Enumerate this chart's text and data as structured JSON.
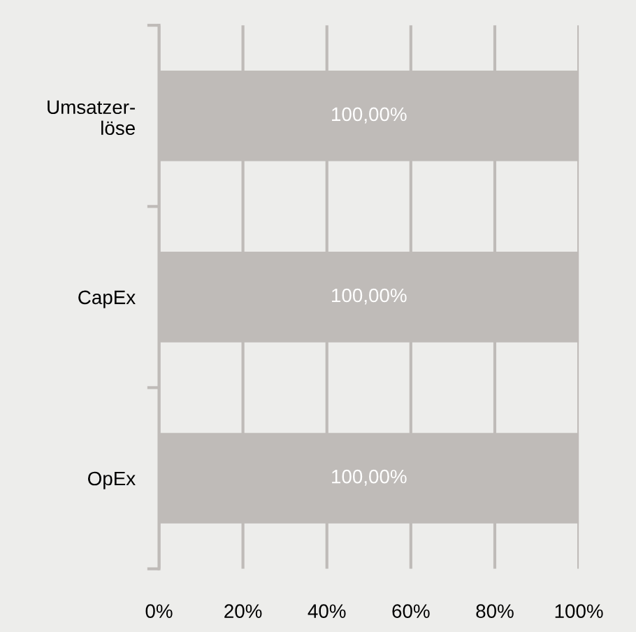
{
  "chart_data": {
    "type": "bar",
    "orientation": "horizontal",
    "categories": [
      "Umsatzer-\nlöse",
      "CapEx",
      "OpEx"
    ],
    "values": [
      100,
      100,
      100
    ],
    "value_labels": [
      "100,00%",
      "100,00%",
      "100,00%"
    ],
    "color": "#bfbbb8",
    "xlim": [
      0,
      100
    ],
    "xticks": [
      {
        "value": 0,
        "label": "0%"
      },
      {
        "value": 20,
        "label": "20%"
      },
      {
        "value": 40,
        "label": "40%"
      },
      {
        "value": 60,
        "label": "60%"
      },
      {
        "value": 80,
        "label": "80%"
      },
      {
        "value": 100,
        "label": "100%"
      }
    ],
    "grid": "x"
  }
}
